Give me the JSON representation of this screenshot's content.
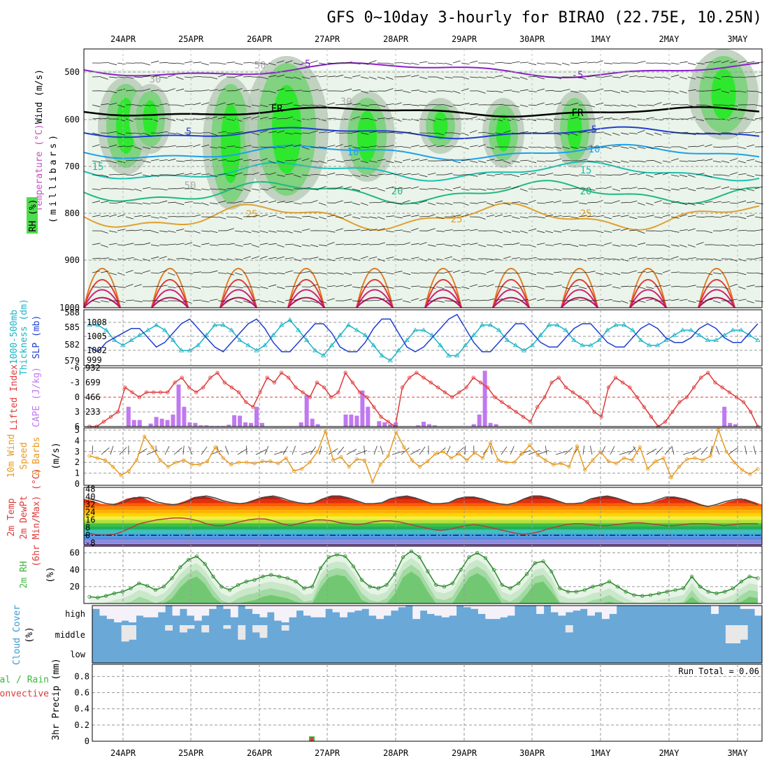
{
  "title": "GFS 0~10day 3-hourly for BIRAO (22.75E, 10.25N)",
  "dates": [
    "24APR",
    "25APR",
    "26APR",
    "27APR",
    "28APR",
    "29APR",
    "30APR",
    "1MAY",
    "2MAY",
    "3MAY"
  ],
  "run_total": "Run Total = 0.06",
  "colors": {
    "rh_green": "#4ddd4d",
    "thickness": "#19b4c8",
    "slp": "#1f3fd0",
    "lifted": "#e03a3a",
    "cape": "#c078f0",
    "wind": "#e89a20",
    "rh2m": "#3bb83b",
    "cloud": "#6aa8d8"
  },
  "panels": {
    "upper": {
      "label_wind": "Wind (m/s)",
      "label_temp": "Temperature (°C)",
      "label_rh": "RH (%)",
      "label_mb": "(millibars)",
      "ticks": [
        "500",
        "600",
        "700",
        "800",
        "900",
        "1000"
      ],
      "contours": [
        "-5",
        "-5",
        "FR",
        "FR",
        "5",
        "5",
        "10",
        "10",
        "15",
        "15",
        "20",
        "20",
        "25",
        "25",
        "25",
        "30",
        "30",
        "50",
        "50"
      ]
    },
    "slp": {
      "label_thick": "1000-500mb",
      "label_thick2": "Thickness (dm)",
      "label_slp": "SLP (mb)",
      "left_ticks": [
        "588",
        "585",
        "582",
        "579"
      ],
      "right_ticks": [
        "1008",
        "1005",
        "1002",
        "999"
      ],
      "chart_data": {
        "type": "line",
        "series": [
          {
            "name": "1000-500mb Thickness (dm)",
            "values": [
              586,
              586,
              585,
              583,
              582,
              583,
              584,
              585,
              586,
              585,
              583,
              581,
              581,
              582,
              584,
              586,
              586,
              585,
              583,
              582,
              581,
              582,
              584,
              586,
              587,
              585,
              583,
              581,
              580,
              582,
              584,
              586,
              585,
              584,
              582,
              580,
              579,
              581,
              583,
              585,
              585,
              584,
              582,
              580,
              580,
              582,
              584,
              586,
              586,
              585,
              583,
              582,
              581,
              582,
              584,
              586,
              586,
              585,
              583,
              582,
              582,
              583,
              585,
              586,
              586,
              585,
              583,
              582,
              582,
              583,
              584,
              585,
              585,
              584,
              583,
              583,
              584,
              585,
              585,
              584,
              583
            ]
          },
          {
            "name": "SLP (mb)",
            "values": [
              1002,
              1001,
              1003,
              1004,
              1005,
              1006,
              1006,
              1004,
              1002,
              1003,
              1005,
              1007,
              1008,
              1006,
              1004,
              1002,
              1001,
              1003,
              1005,
              1007,
              1008,
              1006,
              1003,
              1001,
              1001,
              1003,
              1005,
              1007,
              1007,
              1005,
              1002,
              1001,
              1001,
              1003,
              1006,
              1008,
              1008,
              1005,
              1002,
              1001,
              1002,
              1004,
              1006,
              1008,
              1009,
              1006,
              1003,
              1001,
              1001,
              1003,
              1005,
              1007,
              1007,
              1005,
              1003,
              1002,
              1002,
              1004,
              1006,
              1007,
              1007,
              1005,
              1003,
              1002,
              1002,
              1004,
              1006,
              1007,
              1006,
              1004,
              1003,
              1003,
              1004,
              1006,
              1007,
              1006,
              1004,
              1003,
              1003,
              1005,
              1007
            ]
          }
        ]
      }
    },
    "cape": {
      "label_li": "Lifted Index",
      "label_cape": "CAPE (J/kg)",
      "left_ticks": [
        "-6",
        "-3",
        "0",
        "3",
        "6"
      ],
      "right_ticks": [
        "932",
        "699",
        "466",
        "233"
      ],
      "chart_data": {
        "type": "bar",
        "cape_values": [
          0,
          0,
          0,
          0,
          0,
          0,
          0,
          330,
          110,
          110,
          0,
          50,
          160,
          130,
          110,
          200,
          700,
          330,
          70,
          60,
          20,
          20,
          10,
          10,
          10,
          30,
          190,
          180,
          70,
          60,
          330,
          60,
          0,
          0,
          0,
          0,
          0,
          0,
          70,
          530,
          130,
          40,
          0,
          0,
          0,
          0,
          200,
          200,
          180,
          600,
          330,
          0,
          90,
          70,
          40,
          70,
          0,
          0,
          0,
          20,
          80,
          40,
          20,
          0,
          0,
          0,
          0,
          0,
          0,
          40,
          200,
          930,
          60,
          40,
          0,
          0,
          0,
          0,
          0,
          0,
          0,
          0,
          0,
          0,
          0,
          0,
          0,
          0,
          0,
          0,
          0,
          0,
          0,
          0,
          0,
          0,
          0,
          0,
          0,
          0,
          0,
          0,
          0,
          0,
          0,
          0,
          0,
          0,
          0,
          0,
          0,
          0,
          0,
          0,
          330,
          60,
          40,
          0,
          0,
          0,
          0
        ],
        "lifted_values": [
          6,
          6,
          5,
          4,
          3,
          -2,
          -1,
          0,
          -1,
          -1,
          -1,
          -1,
          -3,
          -4,
          -2,
          -1,
          -2,
          -4,
          -5,
          -3,
          -2,
          -1,
          1,
          2,
          -1,
          -4,
          -3,
          -5,
          -4,
          -2,
          -1,
          0,
          -3,
          -2,
          0,
          -1,
          -5,
          -3,
          -1,
          0,
          2,
          4,
          5,
          6,
          -2,
          -4,
          -5,
          -4,
          -3,
          -2,
          -1,
          0,
          -1,
          -2,
          -4,
          -3,
          -2,
          0,
          1,
          2,
          3,
          4,
          5,
          2,
          0,
          -3,
          -4,
          -2,
          -1,
          0,
          1,
          3,
          4,
          -2,
          -4,
          -3,
          -2,
          0,
          2,
          4,
          6,
          5,
          3,
          1,
          0,
          -2,
          -4,
          -5,
          -3,
          -2,
          -1,
          0,
          1,
          3,
          6
        ]
      }
    },
    "wind": {
      "label": "10m Wind",
      "label2": "Speed",
      "label3": "& Barbs",
      "label_unit": "(m/s)",
      "ticks": [
        "5",
        "4",
        "3",
        "2",
        "1",
        "0"
      ],
      "chart_data": {
        "type": "line",
        "series": [
          {
            "name": "10m Wind Speed (m/s)",
            "values": [
              2.6,
              2.4,
              2.2,
              1.6,
              0.8,
              1.2,
              2.2,
              4.4,
              3.4,
              2.2,
              1.6,
              2.0,
              2.2,
              1.8,
              1.8,
              2.1,
              3.4,
              2.4,
              1.8,
              2.0,
              2.0,
              1.9,
              2.1,
              2.1,
              1.9,
              2.4,
              1.2,
              1.4,
              2.0,
              3.0,
              4.9,
              2.2,
              2.5,
              1.6,
              2.3,
              2.2,
              0.2,
              1.8,
              2.6,
              4.8,
              3.4,
              2.2,
              1.6,
              2.1,
              2.8,
              3.0,
              2.4,
              2.8,
              2.2,
              2.9,
              2.4,
              3.8,
              2.2,
              2.0,
              2.0,
              2.8,
              3.6,
              2.7,
              2.2,
              1.8,
              1.9,
              1.6,
              3.5,
              1.3,
              2.2,
              3.0,
              2.1,
              1.9,
              2.4,
              2.2,
              3.4,
              1.4,
              2.1,
              2.4,
              0.6,
              1.6,
              2.3,
              2.4,
              2.2,
              2.6,
              5.0,
              3.0,
              2.0,
              1.3,
              0.9,
              1.4
            ]
          }
        ]
      }
    },
    "temp": {
      "label": "2m Temp",
      "label2": "2m DewPt",
      "label3": "(6hr Min/Max) (°C)",
      "ticks": [
        "48",
        "40",
        "32",
        "24",
        "16",
        "8",
        "0",
        "-8"
      ],
      "chart_data": {
        "type": "area",
        "series": [
          {
            "name": "2m Temp",
            "values": [
              38,
              36,
              33,
              32,
              34,
              38,
              40,
              39,
              35,
              33,
              32,
              33,
              36,
              40,
              41,
              39,
              36,
              34,
              33,
              34,
              37,
              40,
              41,
              39,
              36,
              34,
              33,
              34,
              38,
              41,
              41,
              39,
              36,
              33,
              33,
              34,
              38,
              40,
              41,
              39,
              36,
              33,
              33,
              34,
              38,
              40,
              40,
              38,
              35,
              33,
              32,
              34,
              38,
              41,
              41,
              39,
              36,
              33,
              33,
              34,
              38,
              40,
              41,
              39,
              36,
              33,
              33,
              34,
              37,
              40,
              40,
              38,
              35,
              32,
              30,
              32,
              35,
              37,
              38,
              35,
              32
            ]
          },
          {
            "name": "2m DewPt",
            "values": [
              2,
              0,
              0,
              1,
              4,
              8,
              12,
              14,
              16,
              17,
              18,
              18,
              17,
              15,
              12,
              10,
              10,
              12,
              14,
              16,
              17,
              17,
              15,
              12,
              10,
              12,
              14,
              16,
              16,
              15,
              13,
              12,
              11,
              12,
              14,
              15,
              15,
              14,
              12,
              10,
              8,
              6,
              5,
              6,
              8,
              10,
              11,
              10,
              8,
              6,
              4,
              2,
              1,
              2,
              4,
              7,
              9,
              11,
              12,
              12,
              11,
              10,
              10,
              11,
              12,
              13,
              13,
              12,
              11,
              10,
              10,
              11,
              12,
              12,
              12,
              11,
              10,
              11,
              12,
              12,
              12
            ]
          }
        ]
      }
    },
    "rh": {
      "label": "2m RH",
      "label_unit": "(%)",
      "ticks": [
        "60",
        "40",
        "20"
      ],
      "chart_data": {
        "type": "area",
        "series": [
          {
            "name": "2m RH (%)",
            "values": [
              8,
              7,
              9,
              12,
              14,
              18,
              24,
              21,
              16,
              20,
              30,
              43,
              52,
              56,
              47,
              32,
              20,
              16,
              22,
              26,
              28,
              32,
              34,
              32,
              30,
              26,
              18,
              20,
              42,
              55,
              58,
              56,
              44,
              28,
              20,
              18,
              22,
              35,
              55,
              62,
              55,
              38,
              22,
              20,
              24,
              40,
              55,
              60,
              54,
              40,
              22,
              18,
              24,
              35,
              48,
              50,
              38,
              18,
              14,
              14,
              16,
              20,
              22,
              26,
              20,
              14,
              10,
              9,
              10,
              12,
              14,
              16,
              18,
              32,
              20,
              14,
              12,
              14,
              18,
              26,
              32,
              30
            ]
          }
        ]
      }
    },
    "cloud": {
      "label": "Cloud Cover",
      "label_unit": "(%)",
      "levels": [
        "high",
        "middle",
        "low"
      ],
      "chart_data": {
        "type": "bar",
        "high": [
          80,
          40,
          20,
          0,
          10,
          0,
          40,
          30,
          30,
          60,
          100,
          40,
          80,
          40,
          10,
          40,
          80,
          100,
          80,
          30,
          100,
          80,
          50,
          30,
          60,
          10,
          0,
          30,
          70,
          40,
          30,
          30,
          80,
          60,
          30,
          60,
          70,
          80,
          40,
          20,
          40,
          70,
          90,
          100,
          20,
          70,
          50,
          40,
          30,
          40,
          100,
          90,
          80,
          50,
          20,
          20,
          30,
          40,
          100,
          100,
          100,
          50,
          100,
          60,
          40,
          60,
          70,
          80,
          40,
          60,
          20,
          50,
          100,
          100,
          100,
          100,
          100,
          100,
          100,
          100,
          100,
          100,
          100,
          100,
          100,
          50,
          100,
          100,
          100,
          80,
          80,
          40
        ],
        "middle": [
          0,
          0,
          0,
          0,
          90,
          80,
          0,
          0,
          0,
          0,
          30,
          0,
          40,
          20,
          0,
          40,
          0,
          0,
          20,
          0,
          80,
          0,
          40,
          70,
          0,
          0,
          30,
          0,
          0,
          0,
          0,
          0,
          0,
          0,
          0,
          0,
          0,
          0,
          0,
          0,
          0,
          0,
          0,
          0,
          0,
          0,
          0,
          0,
          0,
          0,
          0,
          0,
          0,
          0,
          0,
          0,
          0,
          0,
          0,
          0,
          0,
          0,
          0,
          0,
          0,
          40,
          0,
          0,
          0,
          0,
          0,
          0,
          0,
          0,
          0,
          0,
          0,
          0,
          0,
          0,
          0,
          0,
          0,
          0,
          0,
          0,
          0,
          100,
          100,
          80,
          0,
          0
        ],
        "low": [
          0,
          0,
          0,
          0,
          0,
          0,
          0,
          0,
          0,
          0,
          0,
          0,
          0,
          0,
          0,
          0,
          0,
          0,
          0,
          0,
          0,
          0,
          0,
          0,
          0,
          0,
          0,
          0,
          0,
          0,
          0,
          0,
          0,
          0,
          0,
          0,
          0,
          0,
          0,
          0,
          0,
          0,
          0,
          0,
          0,
          0,
          0,
          0,
          0,
          0,
          0,
          0,
          0,
          0,
          0,
          0,
          0,
          0,
          0,
          0,
          0,
          0,
          0,
          0,
          0,
          0,
          0,
          0,
          0,
          0,
          0,
          0,
          0,
          0,
          0,
          0,
          0,
          0,
          0,
          0,
          0,
          0,
          0,
          0,
          0,
          0,
          0,
          0,
          0,
          0,
          0,
          0
        ]
      }
    },
    "precip": {
      "label": "Total / Rain",
      "label2": "Convective",
      "label3": "3hr Precip (mm)",
      "ticks": [
        "0.8",
        "0.6",
        "0.4",
        "0.2",
        "0"
      ],
      "chart_data": {
        "type": "bar",
        "x_index": [
          25
        ],
        "values": [
          0.06
        ]
      }
    }
  }
}
